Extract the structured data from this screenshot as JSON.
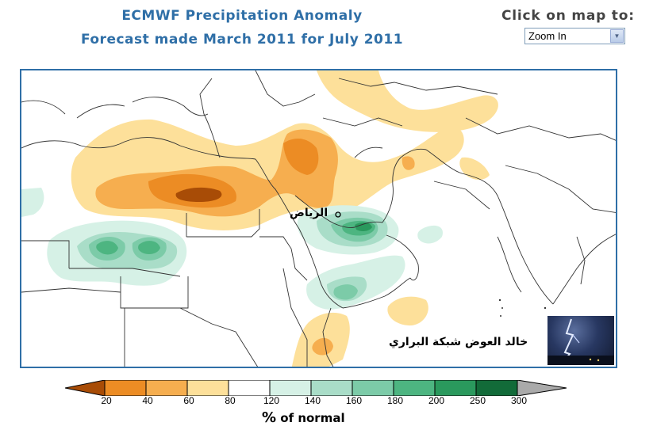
{
  "header": {
    "title_line1": "ECMWF Precipitation Anomaly",
    "title_line2": "Forecast made March 2011 for July 2011"
  },
  "controls": {
    "click_label": "Click on map to:",
    "zoom_select_value": "Zoom In",
    "zoom_arrow_icon": "chevron-down-icon"
  },
  "map": {
    "city_label": "الرياض",
    "credit_text": "خالد العوض شبكة البراري",
    "photo_subject": "lightning"
  },
  "legend": {
    "ticks": [
      "20",
      "40",
      "60",
      "80",
      "120",
      "140",
      "160",
      "180",
      "200",
      "250",
      "300"
    ],
    "unit_symbol": "%",
    "unit_text": " of normal",
    "colors": [
      "#a84c06",
      "#ec8c24",
      "#f6ae4f",
      "#fde09a",
      "#ffffff",
      "#d6f1e6",
      "#a9ddc8",
      "#7ccba8",
      "#4db581",
      "#2a995d",
      "#126b39",
      "#aaaaaa"
    ]
  }
}
